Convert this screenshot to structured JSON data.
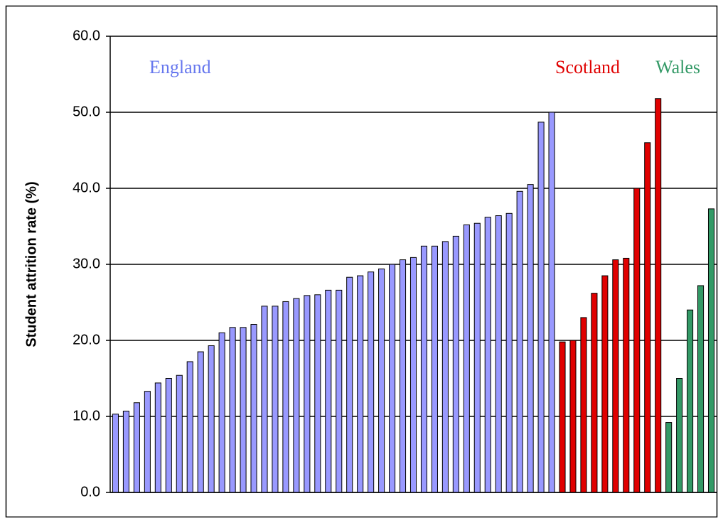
{
  "chart_data": {
    "type": "bar",
    "y_label": "Student attrition rate (%)",
    "categories": [
      null,
      null,
      null,
      null,
      null,
      null,
      null,
      null,
      null,
      null,
      null,
      null,
      null,
      null,
      null,
      null,
      null,
      null,
      null,
      null,
      null,
      null,
      null,
      null,
      null,
      null,
      null,
      null,
      null,
      null,
      null,
      null,
      null,
      null,
      null,
      null,
      null,
      null,
      null,
      null,
      null,
      null,
      null,
      null,
      null,
      null,
      null,
      null,
      null,
      null,
      null,
      null,
      null,
      null,
      null,
      null,
      null
    ],
    "series": [
      {
        "name": "England",
        "color": "#9999ff",
        "label_color": "#6677ee",
        "values": [
          10.3,
          10.7,
          11.8,
          13.3,
          14.4,
          15.0,
          15.4,
          17.2,
          18.5,
          19.3,
          21.0,
          21.7,
          21.7,
          22.1,
          24.5,
          24.5,
          25.1,
          25.5,
          25.9,
          26.0,
          26.6,
          26.6,
          28.3,
          28.5,
          29.0,
          29.4,
          30.0,
          30.6,
          30.9,
          32.4,
          32.4,
          33.0,
          33.7,
          35.2,
          35.4,
          36.2,
          36.4,
          36.7,
          39.6,
          40.5,
          48.7,
          50.0,
          null,
          null,
          null,
          null,
          null,
          null,
          null,
          null,
          null,
          null,
          null,
          null,
          null,
          null,
          null
        ]
      },
      {
        "name": "Scotland",
        "color": "#e00000",
        "label_color": "#e00000",
        "values": [
          null,
          null,
          null,
          null,
          null,
          null,
          null,
          null,
          null,
          null,
          null,
          null,
          null,
          null,
          null,
          null,
          null,
          null,
          null,
          null,
          null,
          null,
          null,
          null,
          null,
          null,
          null,
          null,
          null,
          null,
          null,
          null,
          null,
          null,
          null,
          null,
          null,
          null,
          null,
          null,
          null,
          null,
          19.8,
          20.0,
          23.0,
          26.2,
          28.5,
          30.6,
          30.8,
          40.0,
          46.0,
          51.8,
          null,
          null,
          null,
          null,
          null
        ]
      },
      {
        "name": "Wales",
        "color": "#339966",
        "label_color": "#339966",
        "values": [
          null,
          null,
          null,
          null,
          null,
          null,
          null,
          null,
          null,
          null,
          null,
          null,
          null,
          null,
          null,
          null,
          null,
          null,
          null,
          null,
          null,
          null,
          null,
          null,
          null,
          null,
          null,
          null,
          null,
          null,
          null,
          null,
          null,
          null,
          null,
          null,
          null,
          null,
          null,
          null,
          null,
          null,
          null,
          null,
          null,
          null,
          null,
          null,
          null,
          null,
          null,
          null,
          9.2,
          15.0,
          24.0,
          27.2,
          37.3
        ]
      }
    ],
    "ylim": [
      0,
      60
    ],
    "yticks": [
      {
        "value": 0,
        "label": "0.0"
      },
      {
        "value": 10,
        "label": "10.0"
      },
      {
        "value": 20,
        "label": "20.0"
      },
      {
        "value": 30,
        "label": "30.0"
      },
      {
        "value": 40,
        "label": "40.0"
      },
      {
        "value": 50,
        "label": "50.0"
      },
      {
        "value": 60,
        "label": "60.0"
      }
    ],
    "grid": true
  }
}
